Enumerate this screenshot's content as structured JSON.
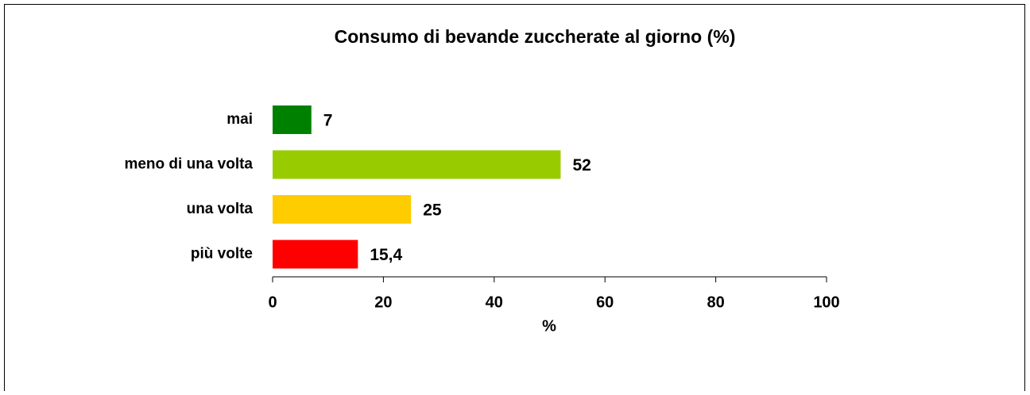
{
  "chart_data": {
    "type": "barh",
    "title": "Consumo di bevande zuccherate al giorno (%)",
    "categories": [
      "mai",
      "meno di una volta",
      "una volta",
      "più volte"
    ],
    "values": [
      7,
      52,
      25,
      15.4
    ],
    "value_labels": [
      "7",
      "52",
      "25",
      "15,4"
    ],
    "colors": [
      "#008000",
      "#99cc00",
      "#ffcc00",
      "#ff0000"
    ],
    "xlabel": "%",
    "xlim": [
      0,
      100
    ],
    "xticks": [
      0,
      20,
      40,
      60,
      80,
      100
    ]
  }
}
